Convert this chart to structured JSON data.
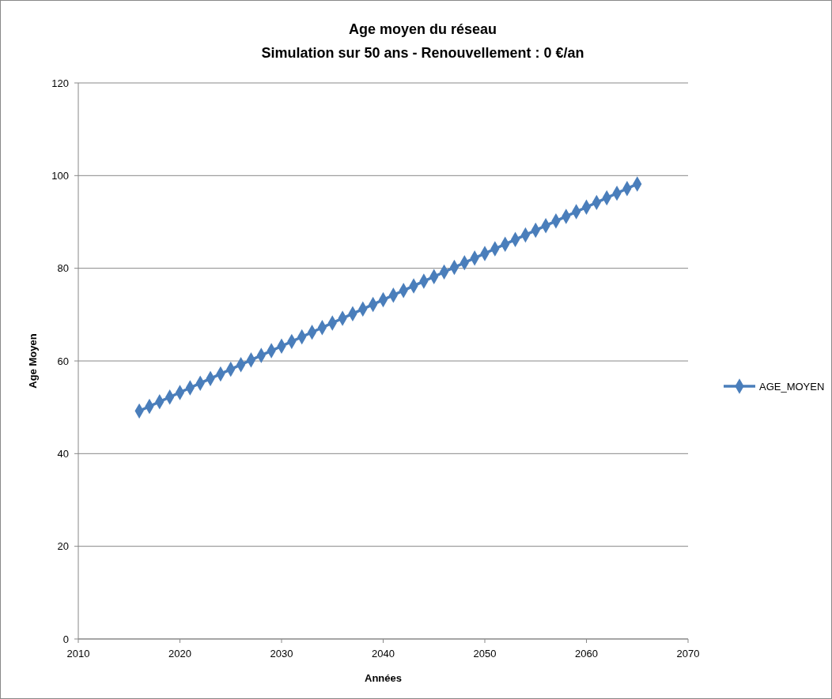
{
  "chart_data": {
    "type": "line",
    "title": "Age moyen du réseau",
    "subtitle": "Simulation sur 50 ans - Renouvellement : 0 €/an",
    "xlabel": "Années",
    "ylabel": "Age Moyen",
    "x": [
      2016,
      2017,
      2018,
      2019,
      2020,
      2021,
      2022,
      2023,
      2024,
      2025,
      2026,
      2027,
      2028,
      2029,
      2030,
      2031,
      2032,
      2033,
      2034,
      2035,
      2036,
      2037,
      2038,
      2039,
      2040,
      2041,
      2042,
      2043,
      2044,
      2045,
      2046,
      2047,
      2048,
      2049,
      2050,
      2051,
      2052,
      2053,
      2054,
      2055,
      2056,
      2057,
      2058,
      2059,
      2060,
      2061,
      2062,
      2063,
      2064,
      2065
    ],
    "series": [
      {
        "name": "AGE_MOYEN",
        "color": "#4a7ebb",
        "values": [
          49.2,
          50.2,
          51.2,
          52.2,
          53.2,
          54.2,
          55.2,
          56.2,
          57.2,
          58.2,
          59.2,
          60.2,
          61.2,
          62.2,
          63.2,
          64.2,
          65.2,
          66.2,
          67.2,
          68.2,
          69.2,
          70.2,
          71.2,
          72.2,
          73.2,
          74.2,
          75.2,
          76.2,
          77.2,
          78.2,
          79.2,
          80.2,
          81.2,
          82.2,
          83.2,
          84.2,
          85.2,
          86.2,
          87.2,
          88.2,
          89.2,
          90.2,
          91.2,
          92.2,
          93.2,
          94.2,
          95.2,
          96.2,
          97.2,
          98.2
        ]
      }
    ],
    "xlim": [
      2010,
      2070
    ],
    "xticks": [
      2010,
      2020,
      2030,
      2040,
      2050,
      2060,
      2070
    ],
    "ylim": [
      0,
      120
    ],
    "yticks": [
      0,
      20,
      40,
      60,
      80,
      100,
      120
    ],
    "grid": "y",
    "legend": "right",
    "marker": "diamond",
    "line_style": "solid"
  }
}
